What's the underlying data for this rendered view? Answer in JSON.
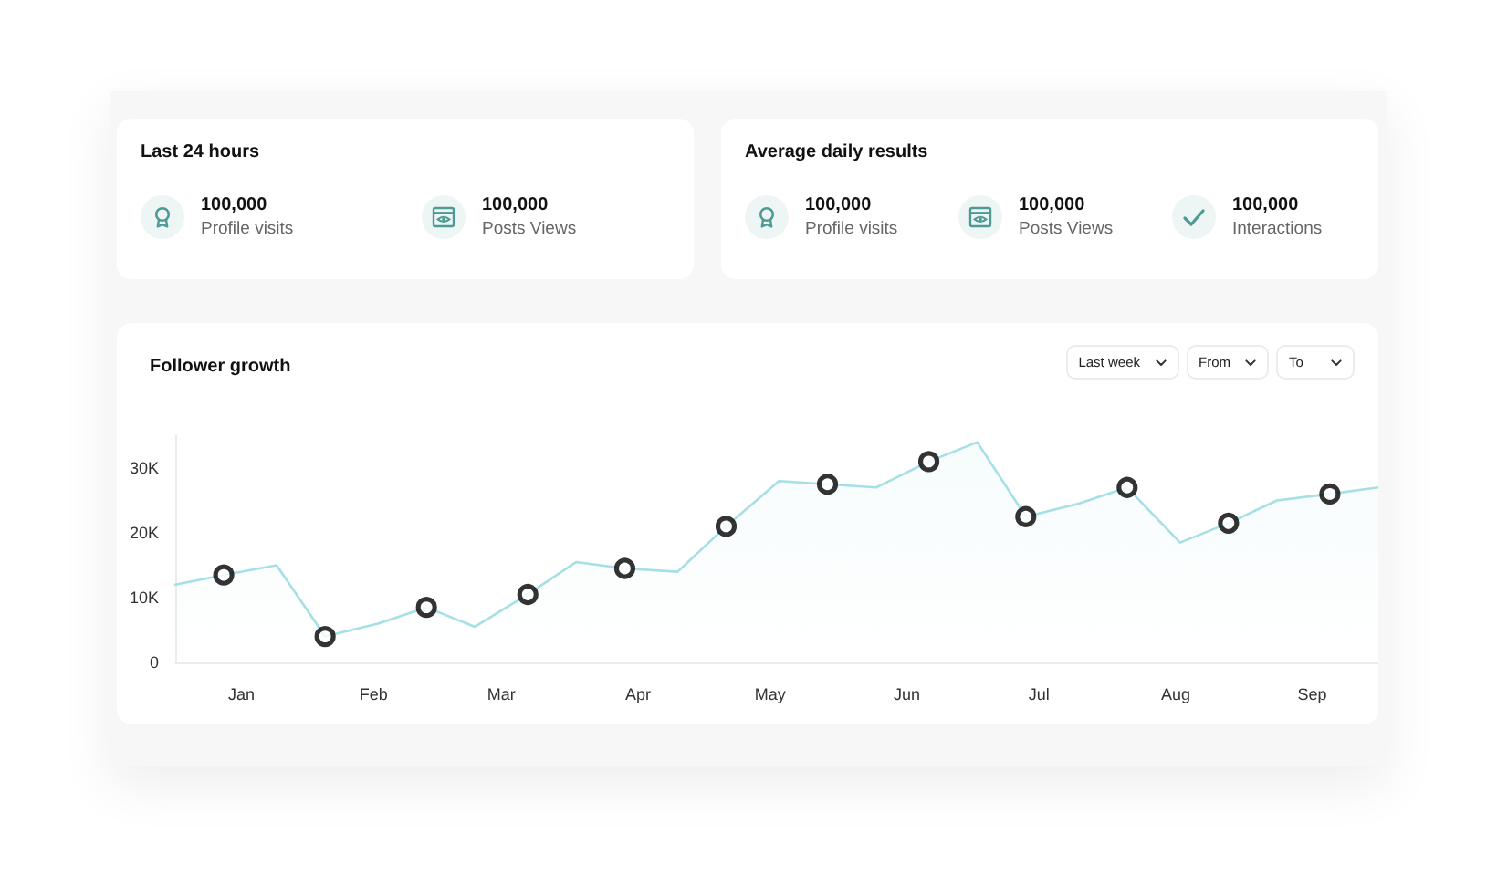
{
  "chart_data": [
    {
      "type": "other",
      "title": "Last 24 hours",
      "annotations": [
        "100,000",
        "Profile visits",
        "100,000",
        "Posts Views"
      ]
    },
    {
      "type": "other",
      "title": "Average daily results",
      "annotations": [
        "100,000",
        "Profile visits",
        "100,000",
        "Posts Views",
        "100,000",
        "Interactions"
      ]
    },
    {
      "type": "line",
      "title": "Follower growth",
      "annotations": [
        "Last week",
        "From",
        "To"
      ],
      "xlim": [
        "--01-01",
        "--10-01"
      ],
      "xticks": [
        {
          "value": "--01-16",
          "label": "Jan"
        },
        {
          "value": "--02-15",
          "label": "Feb"
        },
        {
          "value": "--03-16",
          "label": "Mar"
        },
        {
          "value": "--04-16",
          "label": "Apr"
        },
        {
          "value": "--05-16",
          "label": "May"
        },
        {
          "value": "--06-16",
          "label": "Jun"
        },
        {
          "value": "--07-16",
          "label": "Jul"
        },
        {
          "value": "--08-16",
          "label": "Aug"
        },
        {
          "value": "--09-16",
          "label": "Sep"
        }
      ],
      "ylim": [
        0,
        35000
      ],
      "yticks": [
        0,
        {
          "value": 10000,
          "label": "10K"
        },
        {
          "value": 20000,
          "label": "20K"
        },
        {
          "value": 30000,
          "label": "30K"
        }
      ],
      "series": [
        {
          "type": "area",
          "color": "#a6dfe6",
          "marker": "none",
          "x": [
            "--01-01",
            "--01-12",
            "--01-24",
            "--02-04",
            "--02-16",
            "--02-27",
            "--03-10",
            "--03-22",
            "--04-02",
            "--04-13",
            "--04-25",
            "--05-06",
            "--05-18",
            "--05-29",
            "--06-09",
            "--06-21",
            "--07-02",
            "--07-13",
            "--07-25",
            "--08-05",
            "--08-17",
            "--08-28",
            "--09-08",
            "--09-20",
            "--10-01"
          ],
          "values": [
            12000,
            13500,
            15000,
            4000,
            6000,
            8500,
            5500,
            10500,
            15500,
            14500,
            14000,
            21000,
            28000,
            27500,
            27000,
            31000,
            34000,
            22500,
            24500,
            27000,
            18500,
            21500,
            25000,
            26000,
            27000
          ]
        },
        {
          "type": "scatter",
          "color": "#000000",
          "marker": "circle",
          "x": [
            "--01-12",
            "--02-04",
            "--02-27",
            "--03-22",
            "--04-13",
            "--05-06",
            "--05-29",
            "--06-21",
            "--07-13",
            "--08-05",
            "--08-28",
            "--09-20"
          ],
          "values": [
            13500,
            4000,
            8500,
            10500,
            14500,
            21000,
            27500,
            31000,
            22500,
            27000,
            21500,
            26000
          ]
        }
      ]
    }
  ]
}
